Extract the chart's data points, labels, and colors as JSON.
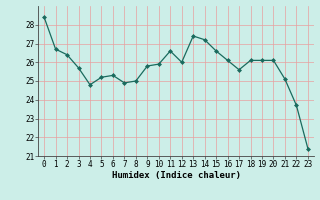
{
  "x": [
    0,
    1,
    2,
    3,
    4,
    5,
    6,
    7,
    8,
    9,
    10,
    11,
    12,
    13,
    14,
    15,
    16,
    17,
    18,
    19,
    20,
    21,
    22,
    23
  ],
  "y": [
    28.4,
    26.7,
    26.4,
    25.7,
    24.8,
    25.2,
    25.3,
    24.9,
    25.0,
    25.8,
    25.9,
    26.6,
    26.0,
    27.4,
    27.2,
    26.6,
    26.1,
    25.6,
    26.1,
    26.1,
    26.1,
    25.1,
    23.7,
    21.4
  ],
  "xlabel": "Humidex (Indice chaleur)",
  "xlim": [
    -0.5,
    23.5
  ],
  "ylim": [
    21,
    29
  ],
  "yticks": [
    21,
    22,
    23,
    24,
    25,
    26,
    27,
    28
  ],
  "xticks": [
    0,
    1,
    2,
    3,
    4,
    5,
    6,
    7,
    8,
    9,
    10,
    11,
    12,
    13,
    14,
    15,
    16,
    17,
    18,
    19,
    20,
    21,
    22,
    23
  ],
  "line_color": "#1a6b5e",
  "marker_color": "#1a6b5e",
  "bg_color": "#cceee8",
  "grid_color": "#e8a0a0",
  "axis_color": "#444444",
  "label_fontsize": 6.5,
  "tick_fontsize": 5.5
}
